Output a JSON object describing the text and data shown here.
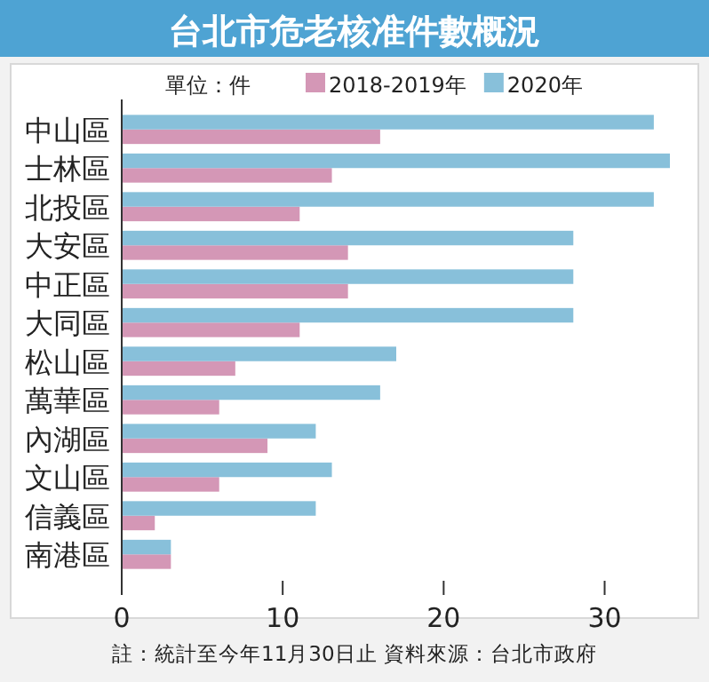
{
  "chart_data": {
    "type": "bar",
    "orientation": "horizontal",
    "title": "台北市危老核准件數概況",
    "categories": [
      "中山區",
      "士林區",
      "北投區",
      "大安區",
      "中正區",
      "大同區",
      "松山區",
      "萬華區",
      "內湖區",
      "文山區",
      "信義區",
      "南港區"
    ],
    "series": [
      {
        "name": "2018-2019年",
        "color": "#d497b6",
        "values": [
          16,
          13,
          11,
          14,
          14,
          11,
          7,
          6,
          9,
          6,
          2,
          3
        ]
      },
      {
        "name": "2020年",
        "color": "#88c0da",
        "values": [
          33,
          34,
          33,
          28,
          28,
          28,
          17,
          16,
          12,
          13,
          12,
          3
        ]
      }
    ],
    "xlim": [
      0,
      34
    ],
    "xticks": [
      0,
      10,
      20,
      30
    ],
    "legend": "top",
    "annotations": [
      "單位：件",
      "註：統計至今年11月30日止 資料來源：台北市政府"
    ]
  }
}
